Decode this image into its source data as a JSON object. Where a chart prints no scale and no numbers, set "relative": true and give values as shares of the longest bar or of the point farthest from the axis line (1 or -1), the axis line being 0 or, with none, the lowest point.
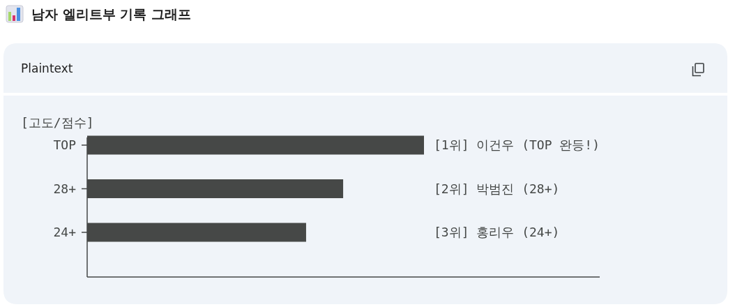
{
  "chart_data": {
    "type": "bar",
    "orientation": "horizontal",
    "relative": true,
    "title": "남자 엘리트부 기록 그래프",
    "ylabel": "[고도/점수]",
    "annotations": [
      "Plaintext",
      "[1위] 이건우 (TOP 완등!)",
      "[2위] 박범진 (28+)",
      "[3위] 홍리우 (24+)"
    ],
    "categories": [
      "TOP",
      "28+",
      "24+"
    ],
    "values": [
      1,
      0.76,
      0.65
    ],
    "color": "#464847"
  }
}
